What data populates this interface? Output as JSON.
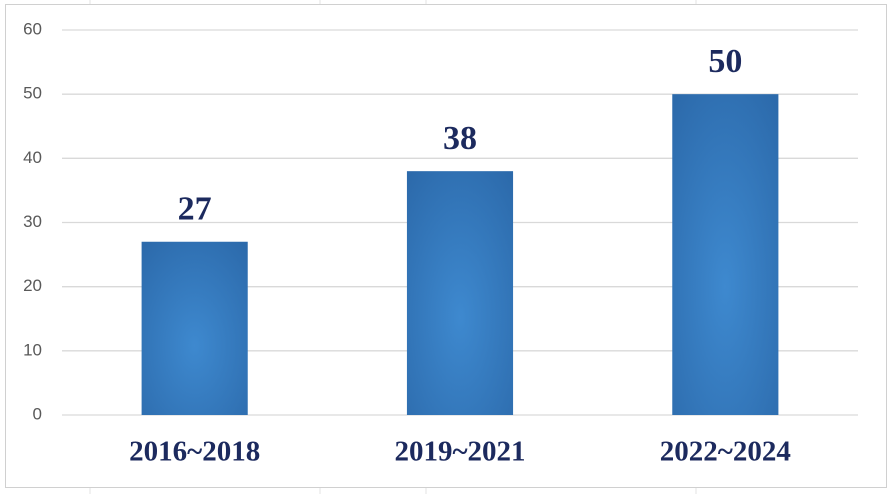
{
  "chart_data": {
    "type": "bar",
    "categories": [
      "2016~2018",
      "2019~2021",
      "2022~2024"
    ],
    "values": [
      27,
      38,
      50
    ],
    "color": "#2c6aab",
    "ylim": [
      0,
      60
    ],
    "yticks": [
      0,
      10,
      20,
      30,
      40,
      50,
      60
    ],
    "grid": true
  }
}
